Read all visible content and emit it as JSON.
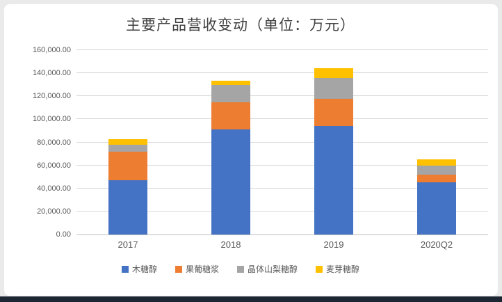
{
  "chart_data": {
    "type": "bar",
    "stacked": true,
    "title": "主要产品营收变动（单位：万元）",
    "categories": [
      "2017",
      "2018",
      "2019",
      "2020Q2"
    ],
    "series": [
      {
        "name": "木糖醇",
        "color": "#4472c4",
        "values": [
          47000,
          91000,
          94000,
          45000
        ]
      },
      {
        "name": "果葡糖浆",
        "color": "#ed7d31",
        "values": [
          25000,
          24000,
          24000,
          7000
        ]
      },
      {
        "name": "晶体山梨糖醇",
        "color": "#a5a5a5",
        "values": [
          6000,
          15000,
          18000,
          8000
        ]
      },
      {
        "name": "麦芽糖醇",
        "color": "#ffc000",
        "values": [
          5000,
          3500,
          8500,
          5000
        ]
      }
    ],
    "ylim": [
      0,
      160000
    ],
    "ytick_step": 20000,
    "ytick_labels": [
      "0.00",
      "20,000.00",
      "40,000.00",
      "60,000.00",
      "80,000.00",
      "100,000.00",
      "120,000.00",
      "140,000.00",
      "160,000.00"
    ],
    "grid": true,
    "legend_position": "bottom",
    "colors": {
      "title_text": "#404040",
      "axis_text": "#595959",
      "gridline": "#d9d9d9",
      "card_background": "#ffffff",
      "page_background": "#eaeaea",
      "bottom_bar": "#1d2633"
    }
  }
}
